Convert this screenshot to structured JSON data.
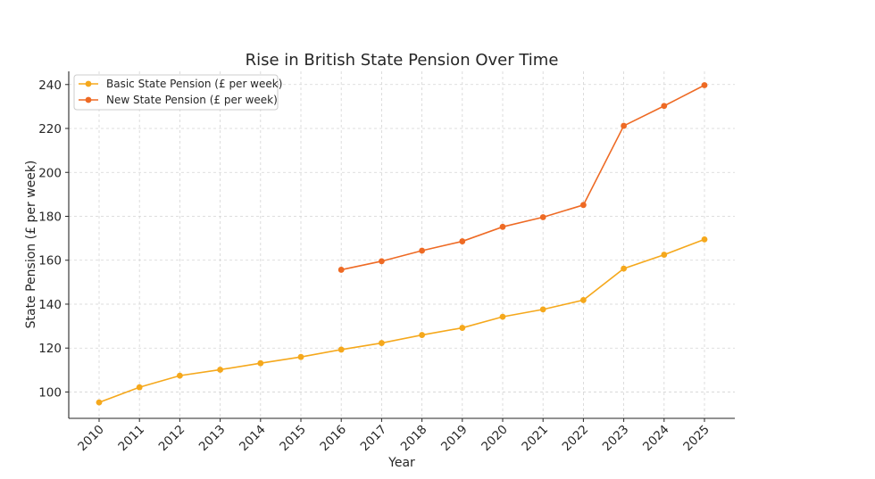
{
  "chart_data": {
    "type": "line",
    "title": "Rise in British State Pension Over Time",
    "xlabel": "Year",
    "ylabel": "State Pension (£ per week)",
    "x": [
      2010,
      2011,
      2012,
      2013,
      2014,
      2015,
      2016,
      2017,
      2018,
      2019,
      2020,
      2021,
      2022,
      2023,
      2024,
      2025
    ],
    "xticks": [
      "2010",
      "2011",
      "2012",
      "2013",
      "2014",
      "2015",
      "2016",
      "2017",
      "2018",
      "2019",
      "2020",
      "2021",
      "2022",
      "2023",
      "2024",
      "2025"
    ],
    "ylim": [
      88,
      246
    ],
    "yticks": [
      100,
      120,
      140,
      160,
      180,
      200,
      220,
      240
    ],
    "yticklabels": [
      "100",
      "120",
      "140",
      "160",
      "180",
      "200",
      "220",
      "240"
    ],
    "grid": true,
    "legend": "top-left",
    "series": [
      {
        "name": "Basic State Pension (£ per week)",
        "color": "#f5a81c",
        "values": [
          95.25,
          102.15,
          107.45,
          110.15,
          113.1,
          115.95,
          119.3,
          122.3,
          125.95,
          129.2,
          134.25,
          137.6,
          141.85,
          156.2,
          162.5,
          169.5
        ]
      },
      {
        "name": "New State Pension (£ per week)",
        "color": "#ee6a24",
        "values": [
          null,
          null,
          null,
          null,
          null,
          null,
          155.65,
          159.55,
          164.35,
          168.6,
          175.2,
          179.6,
          185.15,
          221.2,
          230.25,
          239.7
        ]
      }
    ]
  }
}
